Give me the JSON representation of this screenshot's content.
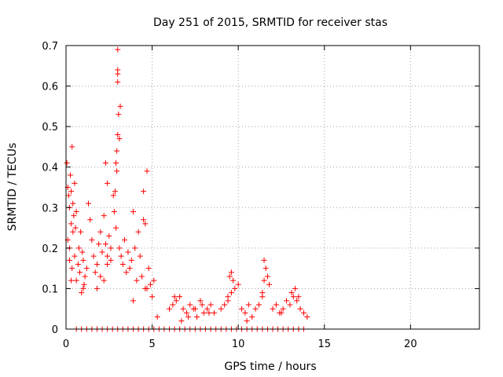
{
  "chart_data": {
    "type": "scatter",
    "title": "Day 251 of 2015, SRMTID for receiver stas",
    "xlabel": "GPS time / hours",
    "ylabel": "SRMTID / TECUs",
    "xlim": [
      0,
      24
    ],
    "ylim": [
      0,
      0.7
    ],
    "xticks": [
      0,
      5,
      10,
      15,
      20
    ],
    "yticks": [
      0,
      0.1,
      0.2,
      0.3,
      0.4,
      0.5,
      0.6,
      0.7
    ],
    "grid": true,
    "series": [
      {
        "name": "SRMTID",
        "color": "#ff0000",
        "marker": "+",
        "x": [
          0.05,
          0.1,
          0.15,
          0.2,
          0.25,
          0.3,
          0.35,
          0.4,
          0.45,
          0.5,
          0.55,
          0.6,
          0.1,
          0.2,
          0.3,
          0.4,
          0.2,
          0.35,
          0.5,
          0.6,
          0.7,
          0.8,
          0.9,
          1.0,
          1.1,
          0.75,
          0.85,
          0.95,
          1.05,
          1.2,
          1.3,
          1.4,
          1.5,
          1.6,
          1.7,
          1.8,
          1.9,
          2.0,
          2.1,
          2.2,
          2.3,
          2.4,
          2.5,
          2.6,
          1.8,
          2.0,
          2.2,
          2.4,
          2.6,
          2.75,
          2.8,
          2.85,
          2.9,
          2.95,
          3.0,
          3.05,
          3.1,
          3.15,
          3.0,
          3.0,
          3.0,
          3.0,
          2.95,
          2.9,
          3.1,
          3.2,
          3.3,
          3.4,
          3.5,
          3.6,
          3.7,
          3.8,
          3.9,
          4.0,
          4.1,
          4.2,
          4.3,
          4.4,
          4.5,
          4.6,
          4.7,
          4.8,
          4.9,
          5.0,
          5.1,
          4.5,
          4.6,
          4.7,
          3.9,
          2.3,
          2.4,
          0.3,
          1.0,
          5.3,
          6.0,
          6.2,
          6.4,
          6.6,
          6.8,
          7.0,
          7.2,
          7.4,
          7.6,
          7.8,
          8.0,
          8.2,
          8.4,
          8.6,
          6.3,
          6.7,
          7.1,
          7.5,
          7.9,
          8.3,
          9.0,
          9.2,
          9.4,
          9.6,
          9.8,
          10.0,
          9.4,
          9.5,
          9.6,
          9.7,
          10.2,
          10.4,
          10.6,
          10.8,
          11.0,
          11.2,
          11.4,
          11.5,
          11.6,
          11.7,
          11.8,
          11.5,
          11.4,
          12.0,
          12.2,
          12.4,
          12.6,
          12.8,
          13.0,
          13.2,
          13.4,
          13.6,
          13.8,
          14.0,
          13.1,
          13.3,
          13.5,
          12.5,
          10.5,
          0.6,
          0.9,
          1.2,
          1.5,
          1.8,
          2.1,
          2.4,
          2.7,
          3.0,
          3.3,
          3.6,
          3.9,
          4.2,
          4.5,
          4.8,
          5.1,
          5.4,
          5.7,
          6.0,
          6.3,
          6.6,
          6.9,
          7.2,
          7.5,
          7.8,
          8.1,
          8.4,
          8.7,
          9.0,
          9.3,
          9.6,
          9.9,
          10.2,
          10.5,
          10.8,
          11.1,
          11.4,
          11.7,
          12.0,
          12.3,
          12.6,
          12.9,
          13.2,
          13.5,
          13.8
        ],
        "y": [
          0.41,
          0.35,
          0.33,
          0.3,
          0.38,
          0.34,
          0.45,
          0.31,
          0.28,
          0.36,
          0.25,
          0.29,
          0.22,
          0.2,
          0.26,
          0.24,
          0.17,
          0.15,
          0.18,
          0.12,
          0.16,
          0.14,
          0.09,
          0.17,
          0.13,
          0.2,
          0.24,
          0.19,
          0.11,
          0.15,
          0.31,
          0.27,
          0.22,
          0.18,
          0.14,
          0.16,
          0.21,
          0.24,
          0.19,
          0.28,
          0.41,
          0.36,
          0.23,
          0.17,
          0.1,
          0.13,
          0.12,
          0.16,
          0.2,
          0.33,
          0.29,
          0.34,
          0.41,
          0.44,
          0.48,
          0.53,
          0.47,
          0.55,
          0.63,
          0.61,
          0.69,
          0.64,
          0.39,
          0.25,
          0.2,
          0.18,
          0.16,
          0.22,
          0.14,
          0.19,
          0.15,
          0.17,
          0.29,
          0.2,
          0.12,
          0.24,
          0.18,
          0.13,
          0.34,
          0.1,
          0.39,
          0.15,
          0.11,
          0.08,
          0.12,
          0.27,
          0.26,
          0.1,
          0.07,
          0.21,
          0.18,
          0.12,
          0.1,
          0.03,
          0.05,
          0.06,
          0.07,
          0.08,
          0.05,
          0.04,
          0.06,
          0.05,
          0.03,
          0.07,
          0.04,
          0.05,
          0.06,
          0.04,
          0.08,
          0.02,
          0.03,
          0.05,
          0.06,
          0.04,
          0.05,
          0.06,
          0.08,
          0.09,
          0.1,
          0.11,
          0.07,
          0.13,
          0.14,
          0.12,
          0.05,
          0.04,
          0.06,
          0.03,
          0.05,
          0.06,
          0.09,
          0.12,
          0.15,
          0.13,
          0.11,
          0.17,
          0.08,
          0.05,
          0.06,
          0.04,
          0.05,
          0.07,
          0.06,
          0.08,
          0.07,
          0.05,
          0.04,
          0.03,
          0.09,
          0.1,
          0.08,
          0.04,
          0.02,
          0,
          0,
          0,
          0,
          0,
          0,
          0,
          0,
          0,
          0,
          0,
          0,
          0,
          0,
          0,
          0,
          0,
          0,
          0,
          0,
          0,
          0,
          0,
          0,
          0,
          0,
          0,
          0,
          0,
          0,
          0,
          0,
          0,
          0,
          0,
          0,
          0,
          0,
          0,
          0,
          0,
          0,
          0,
          0,
          0
        ]
      }
    ]
  }
}
